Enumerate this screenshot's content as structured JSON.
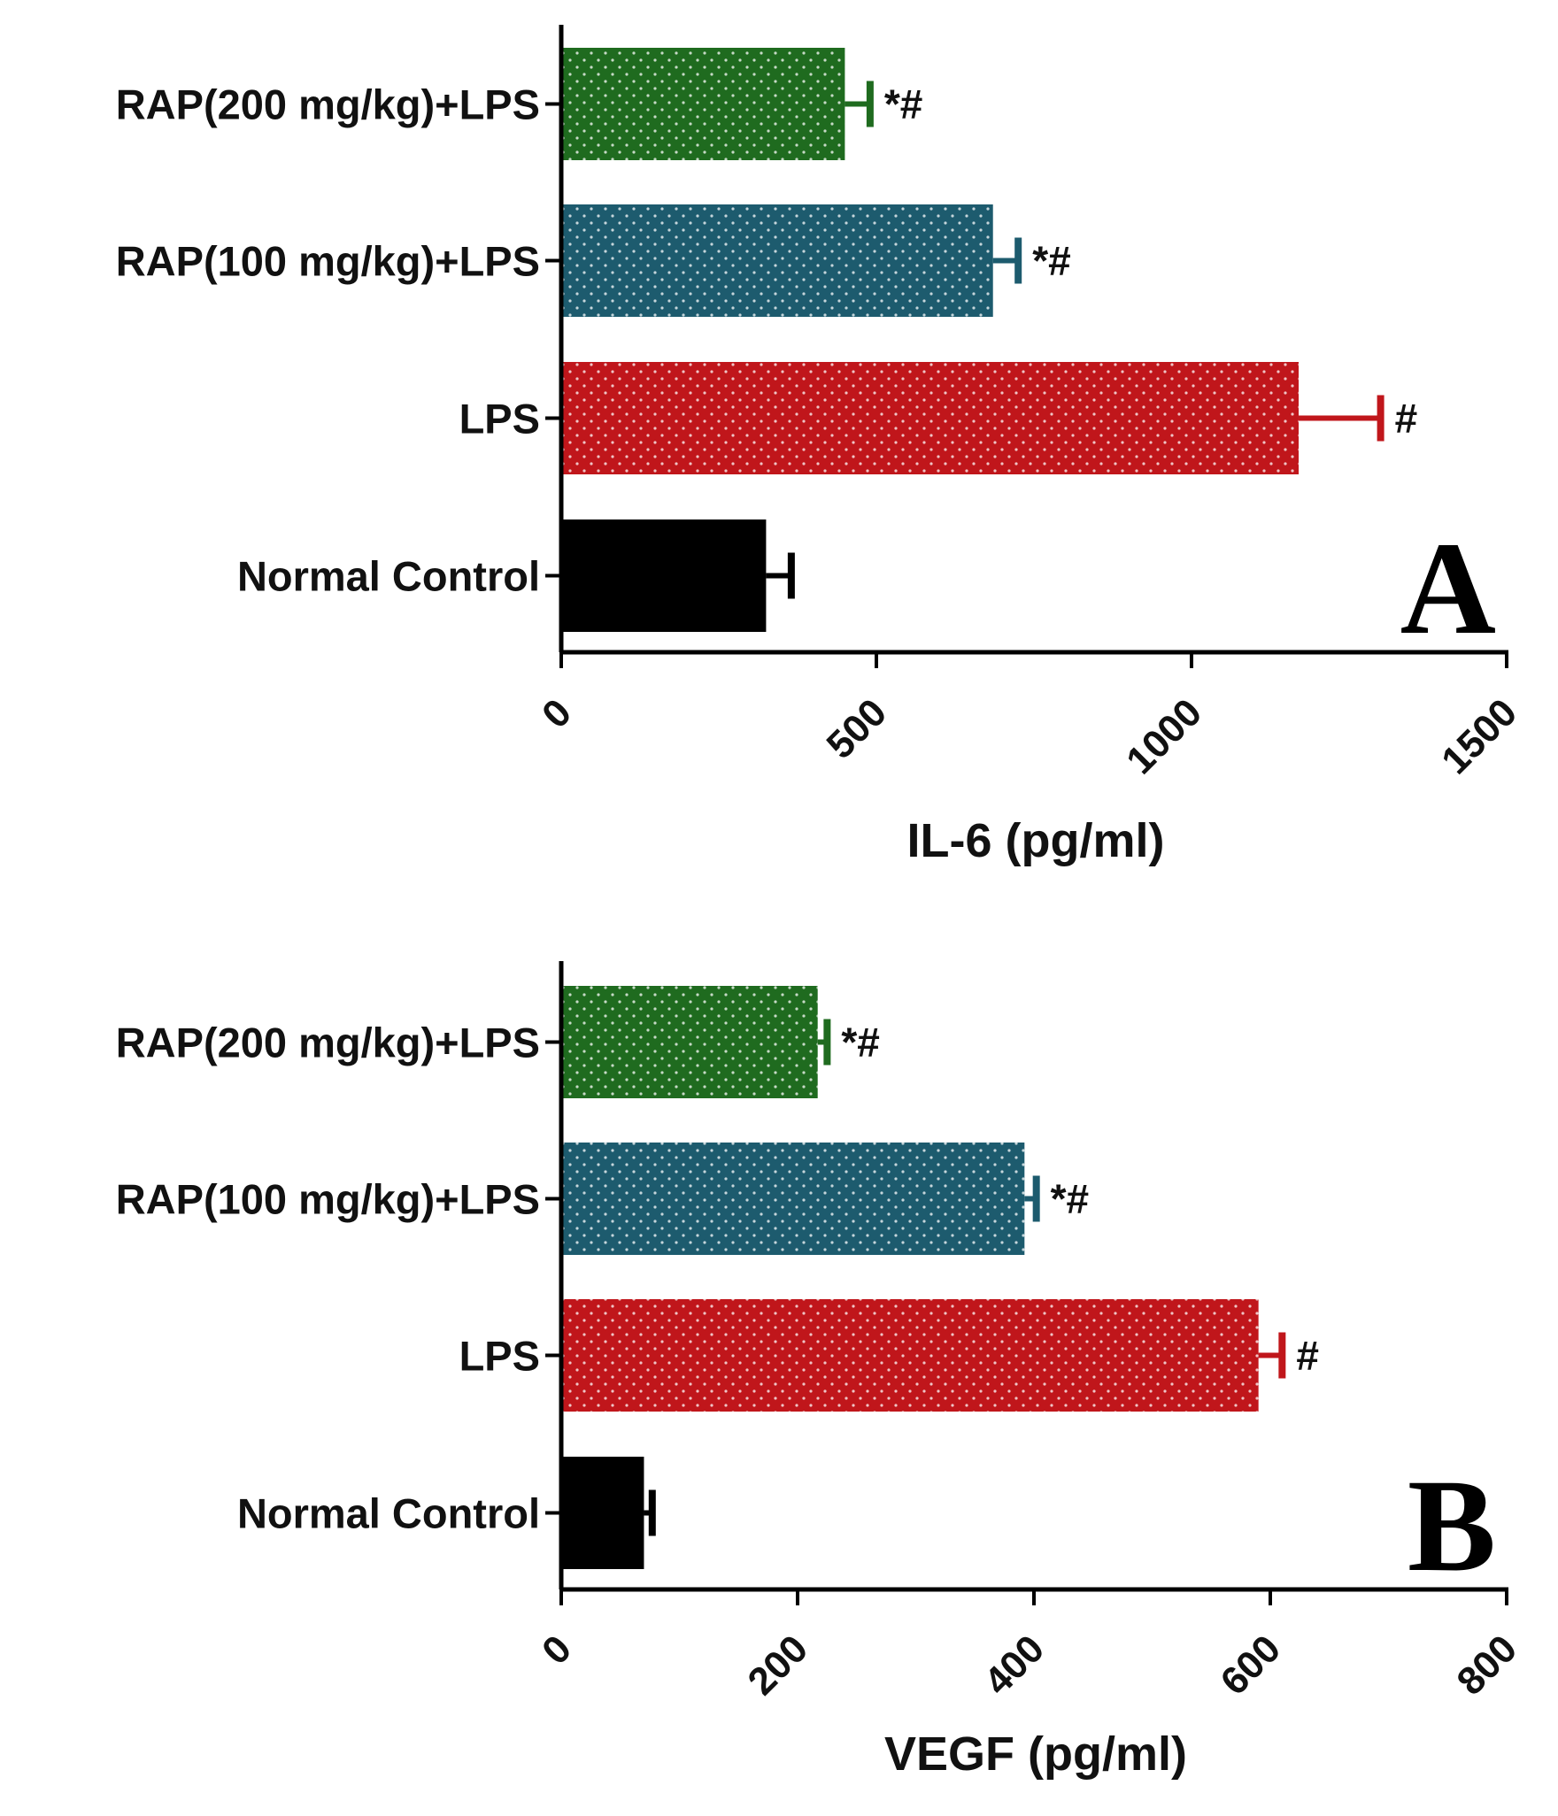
{
  "figure": {
    "colors": {
      "rap200": "#1f6b1f",
      "rap100": "#1d5b6e",
      "lps": "#c0161b",
      "control": "#000000",
      "axis": "#000000"
    }
  },
  "chart_data": [
    {
      "type": "bar",
      "orientation": "horizontal",
      "panel_label": "A",
      "xlabel": "IL-6 (pg/ml)",
      "ylabel": "",
      "xlim": [
        0,
        1500
      ],
      "ticks": [
        "0",
        "500",
        "1000",
        "1500"
      ],
      "tick_values": [
        0,
        500,
        1000,
        1500
      ],
      "categories": [
        "RAP(200 mg/kg)+LPS",
        "RAP(100 mg/kg)+LPS",
        "LPS",
        "Normal Control"
      ],
      "values": [
        450,
        685,
        1170,
        325
      ],
      "errors": [
        40,
        40,
        130,
        40
      ],
      "annotations": [
        "*#",
        "*#",
        "#",
        ""
      ],
      "bar_colors": [
        "#1f6b1f",
        "#1d5b6e",
        "#c0161b",
        "#000000"
      ],
      "patterned": [
        true,
        true,
        true,
        false
      ]
    },
    {
      "type": "bar",
      "orientation": "horizontal",
      "panel_label": "B",
      "xlabel": "VEGF (pg/ml)",
      "ylabel": "",
      "xlim": [
        0,
        800
      ],
      "ticks": [
        "0",
        "200",
        "400",
        "600",
        "800"
      ],
      "tick_values": [
        0,
        200,
        400,
        600,
        800
      ],
      "categories": [
        "RAP(200 mg/kg)+LPS",
        "RAP(100 mg/kg)+LPS",
        "LPS",
        "Normal Control"
      ],
      "values": [
        217,
        392,
        590,
        70
      ],
      "errors": [
        8,
        10,
        20,
        7
      ],
      "annotations": [
        "*#",
        "*#",
        "#",
        ""
      ],
      "bar_colors": [
        "#1f6b1f",
        "#1d5b6e",
        "#c0161b",
        "#000000"
      ],
      "patterned": [
        true,
        true,
        true,
        false
      ]
    }
  ]
}
